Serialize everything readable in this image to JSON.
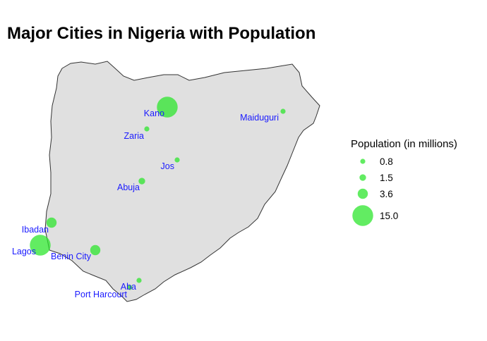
{
  "title": "Major Cities in Nigeria with Population",
  "colors": {
    "country_fill": "#e0e0e0",
    "country_stroke": "#333333",
    "point_fill": "#2ee62e",
    "label_text": "#1a1aff"
  },
  "cities": [
    {
      "name": "Kano",
      "population_millions": 15.0
    },
    {
      "name": "Maiduguri",
      "population_millions": 0.8
    },
    {
      "name": "Zaria",
      "population_millions": 0.8
    },
    {
      "name": "Jos",
      "population_millions": 0.8
    },
    {
      "name": "Abuja",
      "population_millions": 1.5
    },
    {
      "name": "Ibadan",
      "population_millions": 3.6
    },
    {
      "name": "Lagos",
      "population_millions": 15.0
    },
    {
      "name": "Benin City",
      "population_millions": 3.6
    },
    {
      "name": "Aba",
      "population_millions": 0.8
    },
    {
      "name": "Port Harcourt",
      "population_millions": 0.8
    }
  ],
  "legend": {
    "title": "Population (in millions)",
    "items": [
      {
        "label": "0.8",
        "value": 0.8
      },
      {
        "label": "1.5",
        "value": 1.5
      },
      {
        "label": "3.6",
        "value": 3.6
      },
      {
        "label": "15.0",
        "value": 15.0
      }
    ]
  }
}
